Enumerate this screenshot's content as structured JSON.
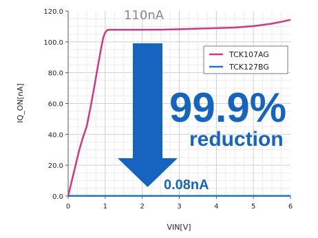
{
  "chart_data": {
    "type": "line",
    "xlabel": "VIN[V]",
    "ylabel": "IQ_ON[nA]",
    "xlim": [
      0,
      6
    ],
    "ylim": [
      0,
      120
    ],
    "x_ticks": [
      "0",
      "1",
      "2",
      "3",
      "4",
      "5",
      "6"
    ],
    "y_ticks": [
      "0.0",
      "20.0",
      "40.0",
      "60.0",
      "80.0",
      "100.0",
      "120.0"
    ],
    "grid": true,
    "legend_position": "top-right",
    "series": [
      {
        "name": "TCK107AG",
        "color": "#d63384",
        "x": [
          0,
          0.05,
          0.1,
          0.2,
          0.3,
          0.4,
          0.5,
          0.6,
          0.7,
          0.8,
          0.9,
          0.95,
          1.0,
          1.05,
          1.1,
          1.5,
          2.0,
          2.5,
          3.0,
          3.5,
          4.0,
          4.5,
          5.0,
          5.5,
          5.8,
          6.0
        ],
        "y": [
          0,
          5,
          10,
          20,
          30,
          38,
          45,
          57,
          70,
          84,
          97,
          103,
          106,
          107.5,
          107.8,
          107.8,
          107.8,
          107.9,
          108.2,
          108.6,
          108.9,
          109.3,
          110.2,
          111.8,
          113.2,
          114.3
        ]
      },
      {
        "name": "TCK127BG",
        "color": "#1e73d2",
        "x": [
          0,
          1,
          2,
          3,
          4,
          5,
          6
        ],
        "y": [
          0.08,
          0.08,
          0.08,
          0.08,
          0.08,
          0.08,
          0.08
        ]
      }
    ],
    "annotations": {
      "peak_label": "110nA",
      "percent_label": "99.9%",
      "reduction_label": "reduction",
      "low_label": "0.08nA",
      "arrow_color": "#1565c0"
    }
  }
}
